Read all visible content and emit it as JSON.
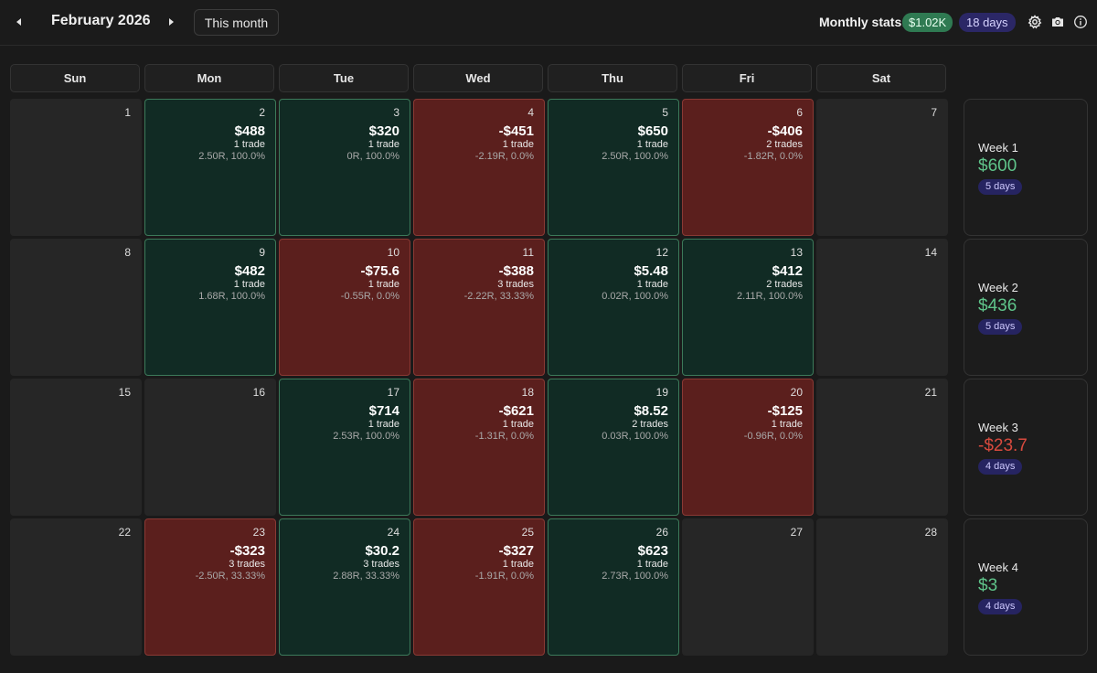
{
  "header": {
    "month_title": "February 2026",
    "this_month_label": "This month",
    "stats_label": "Monthly stats:",
    "monthly_pnl": "$1.02K",
    "monthly_days": "18 days"
  },
  "weekdays": [
    "Sun",
    "Mon",
    "Tue",
    "Wed",
    "Thu",
    "Fri",
    "Sat"
  ],
  "days": [
    {
      "num": "1"
    },
    {
      "num": "2",
      "pnl": "$488",
      "trades": "1 trade",
      "meta": "2.50R, 100.0%",
      "result": "win"
    },
    {
      "num": "3",
      "pnl": "$320",
      "trades": "1 trade",
      "meta": "0R, 100.0%",
      "result": "win"
    },
    {
      "num": "4",
      "pnl": "-$451",
      "trades": "1 trade",
      "meta": "-2.19R, 0.0%",
      "result": "loss"
    },
    {
      "num": "5",
      "pnl": "$650",
      "trades": "1 trade",
      "meta": "2.50R, 100.0%",
      "result": "win"
    },
    {
      "num": "6",
      "pnl": "-$406",
      "trades": "2 trades",
      "meta": "-1.82R, 0.0%",
      "result": "loss"
    },
    {
      "num": "7"
    },
    {
      "num": "8"
    },
    {
      "num": "9",
      "pnl": "$482",
      "trades": "1 trade",
      "meta": "1.68R, 100.0%",
      "result": "win"
    },
    {
      "num": "10",
      "pnl": "-$75.6",
      "trades": "1 trade",
      "meta": "-0.55R, 0.0%",
      "result": "loss"
    },
    {
      "num": "11",
      "pnl": "-$388",
      "trades": "3 trades",
      "meta": "-2.22R, 33.33%",
      "result": "loss"
    },
    {
      "num": "12",
      "pnl": "$5.48",
      "trades": "1 trade",
      "meta": "0.02R, 100.0%",
      "result": "win"
    },
    {
      "num": "13",
      "pnl": "$412",
      "trades": "2 trades",
      "meta": "2.11R, 100.0%",
      "result": "win"
    },
    {
      "num": "14"
    },
    {
      "num": "15"
    },
    {
      "num": "16"
    },
    {
      "num": "17",
      "pnl": "$714",
      "trades": "1 trade",
      "meta": "2.53R, 100.0%",
      "result": "win"
    },
    {
      "num": "18",
      "pnl": "-$621",
      "trades": "1 trade",
      "meta": "-1.31R, 0.0%",
      "result": "loss"
    },
    {
      "num": "19",
      "pnl": "$8.52",
      "trades": "2 trades",
      "meta": "0.03R, 100.0%",
      "result": "win"
    },
    {
      "num": "20",
      "pnl": "-$125",
      "trades": "1 trade",
      "meta": "-0.96R, 0.0%",
      "result": "loss"
    },
    {
      "num": "21"
    },
    {
      "num": "22"
    },
    {
      "num": "23",
      "pnl": "-$323",
      "trades": "3 trades",
      "meta": "-2.50R, 33.33%",
      "result": "loss"
    },
    {
      "num": "24",
      "pnl": "$30.2",
      "trades": "3 trades",
      "meta": "2.88R, 33.33%",
      "result": "win"
    },
    {
      "num": "25",
      "pnl": "-$327",
      "trades": "1 trade",
      "meta": "-1.91R, 0.0%",
      "result": "loss"
    },
    {
      "num": "26",
      "pnl": "$623",
      "trades": "1 trade",
      "meta": "2.73R, 100.0%",
      "result": "win"
    },
    {
      "num": "27"
    },
    {
      "num": "28"
    }
  ],
  "weeks": [
    {
      "label": "Week 1",
      "pnl": "$600",
      "days": "5 days",
      "sign": "pos"
    },
    {
      "label": "Week 2",
      "pnl": "$436",
      "days": "5 days",
      "sign": "pos"
    },
    {
      "label": "Week 3",
      "pnl": "-$23.7",
      "days": "4 days",
      "sign": "neg"
    },
    {
      "label": "Week 4",
      "pnl": "$3",
      "days": "4 days",
      "sign": "pos"
    }
  ],
  "colors": {
    "win_bg": "#112b24",
    "loss_bg": "#5b1f1d",
    "empty_bg": "#262626",
    "positive_text": "#5fc48a",
    "negative_text": "#d94a3e"
  },
  "icons": [
    "prev-month-icon",
    "next-month-icon",
    "gear-icon",
    "camera-icon",
    "info-icon"
  ]
}
